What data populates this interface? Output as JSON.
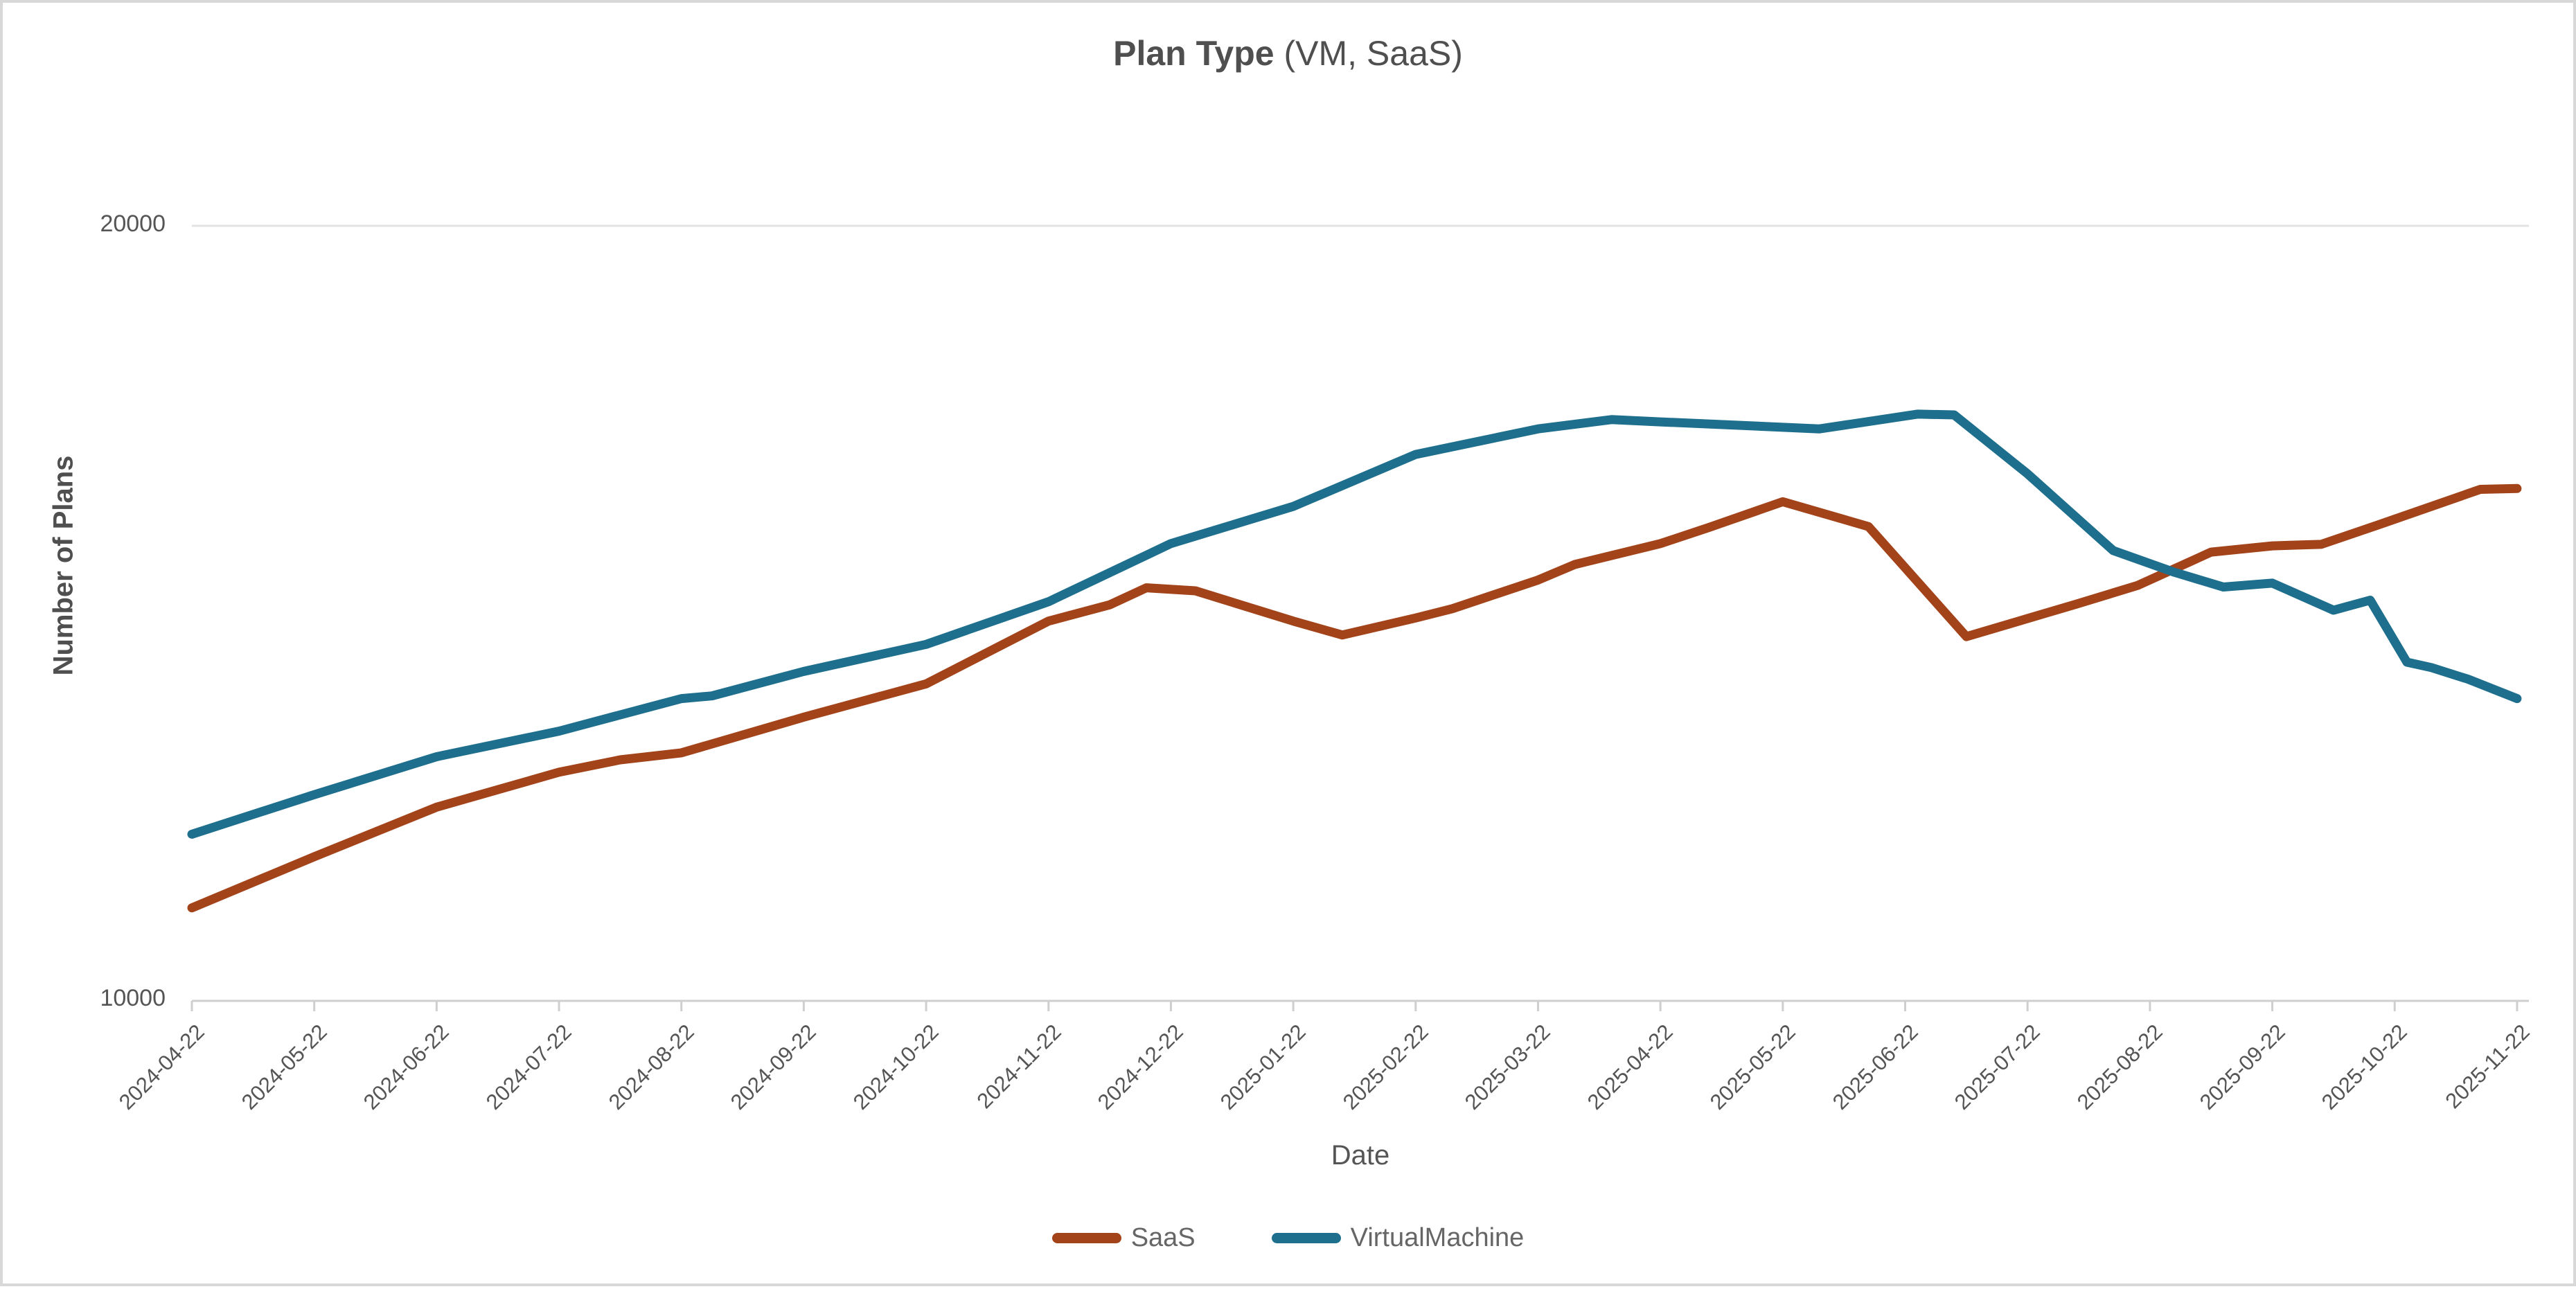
{
  "title": {
    "main": "Plan Type",
    "sub": " (VM, SaaS)"
  },
  "axes": {
    "x_label": "Date",
    "y_label": "Number of Plans",
    "y_tick_top": "20000",
    "y_tick_bottom": "10000"
  },
  "legend": {
    "items": [
      {
        "label": "SaaS",
        "color": "#A3431A"
      },
      {
        "label": "VirtualMachine",
        "color": "#1E6F8D"
      }
    ]
  },
  "chart_data": {
    "type": "line",
    "title": "Plan Type (VM, SaaS)",
    "xlabel": "Date",
    "ylabel": "Number of Plans",
    "ylim": [
      10000,
      20000
    ],
    "y_ticks_labeled": [
      10000,
      20000
    ],
    "grid": "single light horizontal gridline at 20000; bottom axis line at 10000 with monthly tick marks",
    "legend_position": "bottom-center",
    "x_axis_note": "monthly tick labels, rotated 45deg; underlying data is finer-grained (weekly); x values below are fractional month indices where 0 = 2024-04-22 and 19 = 2025-11-22",
    "categories": [
      "2024-04-22",
      "2024-05-22",
      "2024-06-22",
      "2024-07-22",
      "2024-08-22",
      "2024-09-22",
      "2024-10-22",
      "2024-11-22",
      "2024-12-22",
      "2025-01-22",
      "2025-02-22",
      "2025-03-22",
      "2025-04-22",
      "2025-05-22",
      "2025-06-22",
      "2025-07-22",
      "2025-08-22",
      "2025-09-22",
      "2025-10-22",
      "2025-11-22"
    ],
    "series": [
      {
        "name": "SaaS",
        "color": "#A3431A",
        "points": [
          [
            0,
            11200
          ],
          [
            1,
            11860
          ],
          [
            2,
            12500
          ],
          [
            3,
            12950
          ],
          [
            3.5,
            13110
          ],
          [
            4,
            13200
          ],
          [
            5,
            13660
          ],
          [
            6,
            14090
          ],
          [
            7,
            14900
          ],
          [
            7.5,
            15110
          ],
          [
            7.8,
            15330
          ],
          [
            8.2,
            15290
          ],
          [
            9,
            14900
          ],
          [
            9.4,
            14720
          ],
          [
            10,
            14940
          ],
          [
            10.3,
            15060
          ],
          [
            11,
            15430
          ],
          [
            11.3,
            15630
          ],
          [
            12,
            15900
          ],
          [
            12.4,
            16110
          ],
          [
            13,
            16440
          ],
          [
            13.7,
            16120
          ],
          [
            14.5,
            14700
          ],
          [
            15.4,
            15120
          ],
          [
            15.9,
            15360
          ],
          [
            16.5,
            15790
          ],
          [
            17,
            15870
          ],
          [
            17.4,
            15890
          ],
          [
            17.9,
            16160
          ],
          [
            18.7,
            16600
          ],
          [
            19,
            16610
          ]
        ]
      },
      {
        "name": "VirtualMachine",
        "color": "#1E6F8D",
        "points": [
          [
            0,
            12150
          ],
          [
            1,
            12660
          ],
          [
            2,
            13150
          ],
          [
            3,
            13480
          ],
          [
            4,
            13900
          ],
          [
            4.25,
            13935
          ],
          [
            5,
            14250
          ],
          [
            6,
            14600
          ],
          [
            7,
            15150
          ],
          [
            8,
            15900
          ],
          [
            9,
            16380
          ],
          [
            10,
            17050
          ],
          [
            11,
            17380
          ],
          [
            11.6,
            17500
          ],
          [
            12,
            17470
          ],
          [
            13.3,
            17380
          ],
          [
            14.1,
            17570
          ],
          [
            14.4,
            17560
          ],
          [
            15,
            16800
          ],
          [
            15.7,
            15810
          ],
          [
            16.2,
            15530
          ],
          [
            16.6,
            15340
          ],
          [
            17,
            15390
          ],
          [
            17.5,
            15040
          ],
          [
            17.8,
            15170
          ],
          [
            18.1,
            14370
          ],
          [
            18.3,
            14300
          ],
          [
            18.6,
            14150
          ],
          [
            19,
            13900
          ]
        ]
      }
    ]
  }
}
